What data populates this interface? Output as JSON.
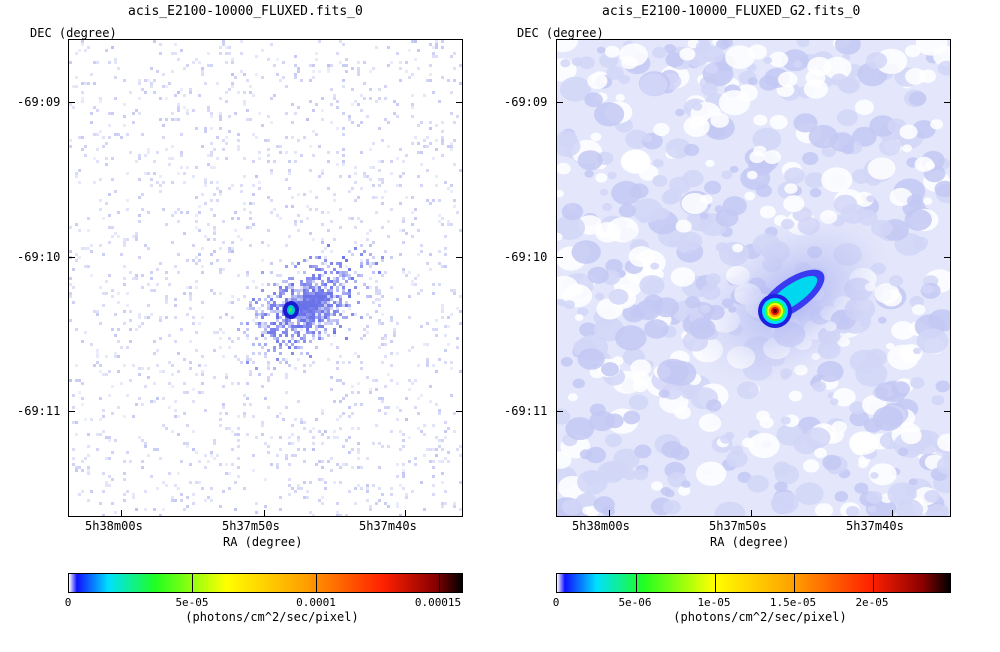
{
  "colors": {
    "background": "#ffffff",
    "faint_noise": "#c8ccf0",
    "halo": "#dfe3fa",
    "ramp": [
      "#ffffff",
      "#1010ff",
      "#00e0ff",
      "#20ff20",
      "#ffff00",
      "#ffa000",
      "#ff2000",
      "#8b0000",
      "#000000"
    ]
  },
  "panels": [
    {
      "id": "left",
      "title": "acis_E2100-10000_FLUXED.fits_0",
      "dec_label": "DEC (degree)",
      "ra_label": "RA (degree)",
      "dec_ticks": [
        "-69:09",
        "-69:10",
        "-69:11"
      ],
      "ra_ticks": [
        "5h38m00s",
        "5h37m50s",
        "5h37m40s"
      ],
      "colorbar": {
        "ticks": [
          "0",
          "5e-05",
          "0.0001",
          "0.00015"
        ],
        "unit": "(photons/cm^2/sec/pixel)"
      }
    },
    {
      "id": "right",
      "title": "acis_E2100-10000_FLUXED_G2.fits_0",
      "dec_label": "DEC (degree)",
      "ra_label": "RA (degree)",
      "dec_ticks": [
        "-69:09",
        "-69:10",
        "-69:11"
      ],
      "ra_ticks": [
        "5h38m00s",
        "5h37m50s",
        "5h37m40s"
      ],
      "colorbar": {
        "ticks": [
          "0",
          "5e-06",
          "1e-05",
          "1.5e-05",
          "2e-05"
        ],
        "unit": "(photons/cm^2/sec/pixel)"
      }
    }
  ]
}
